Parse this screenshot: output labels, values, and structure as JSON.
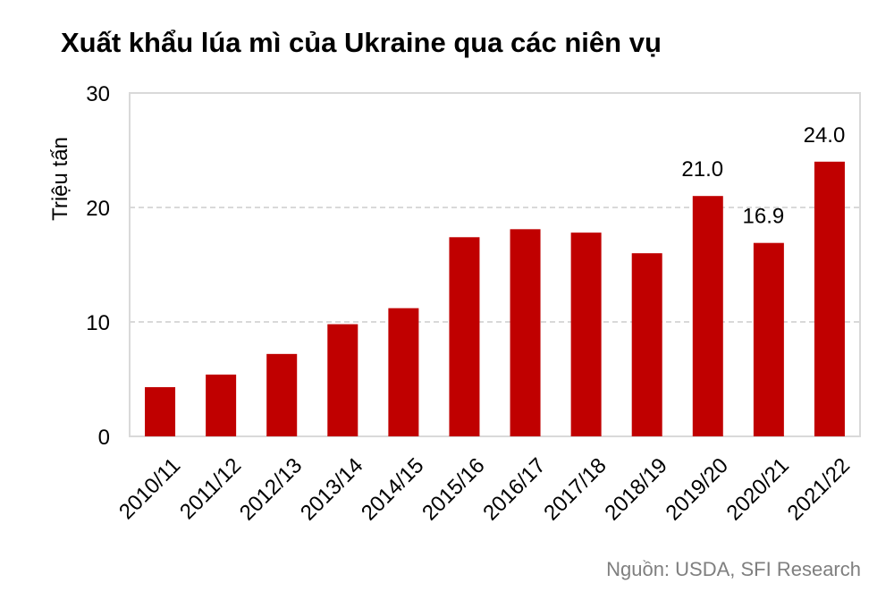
{
  "title": "Xuất khẩu lúa mì của Ukraine qua các niên vụ",
  "source": "Nguồn: USDA, SFI Research",
  "colors": {
    "bar": "#c00000",
    "grid": "#d9d9d9",
    "axis_frame": "#d9d9d9",
    "text": "#000000",
    "source": "#7f7f7f"
  },
  "chart_data": {
    "type": "bar",
    "title": "Xuất khẩu lúa mì của Ukraine qua các niên vụ",
    "xlabel": "",
    "ylabel": "Triệu tấn",
    "ylim": [
      0,
      30
    ],
    "yticks": [
      0,
      10,
      20,
      30
    ],
    "grid": true,
    "categories": [
      "2010/11",
      "2011/12",
      "2012/13",
      "2013/14",
      "2014/15",
      "2015/16",
      "2016/17",
      "2017/18",
      "2018/19",
      "2019/20",
      "2020/21",
      "2021/22"
    ],
    "values": [
      4.3,
      5.4,
      7.2,
      9.8,
      11.2,
      17.4,
      18.1,
      17.8,
      16.0,
      21.0,
      16.9,
      24.0
    ],
    "data_labels": [
      {
        "category": "2019/20",
        "text": "21.0"
      },
      {
        "category": "2020/21",
        "text": "16.9"
      },
      {
        "category": "2021/22",
        "text": "24.0"
      }
    ]
  }
}
